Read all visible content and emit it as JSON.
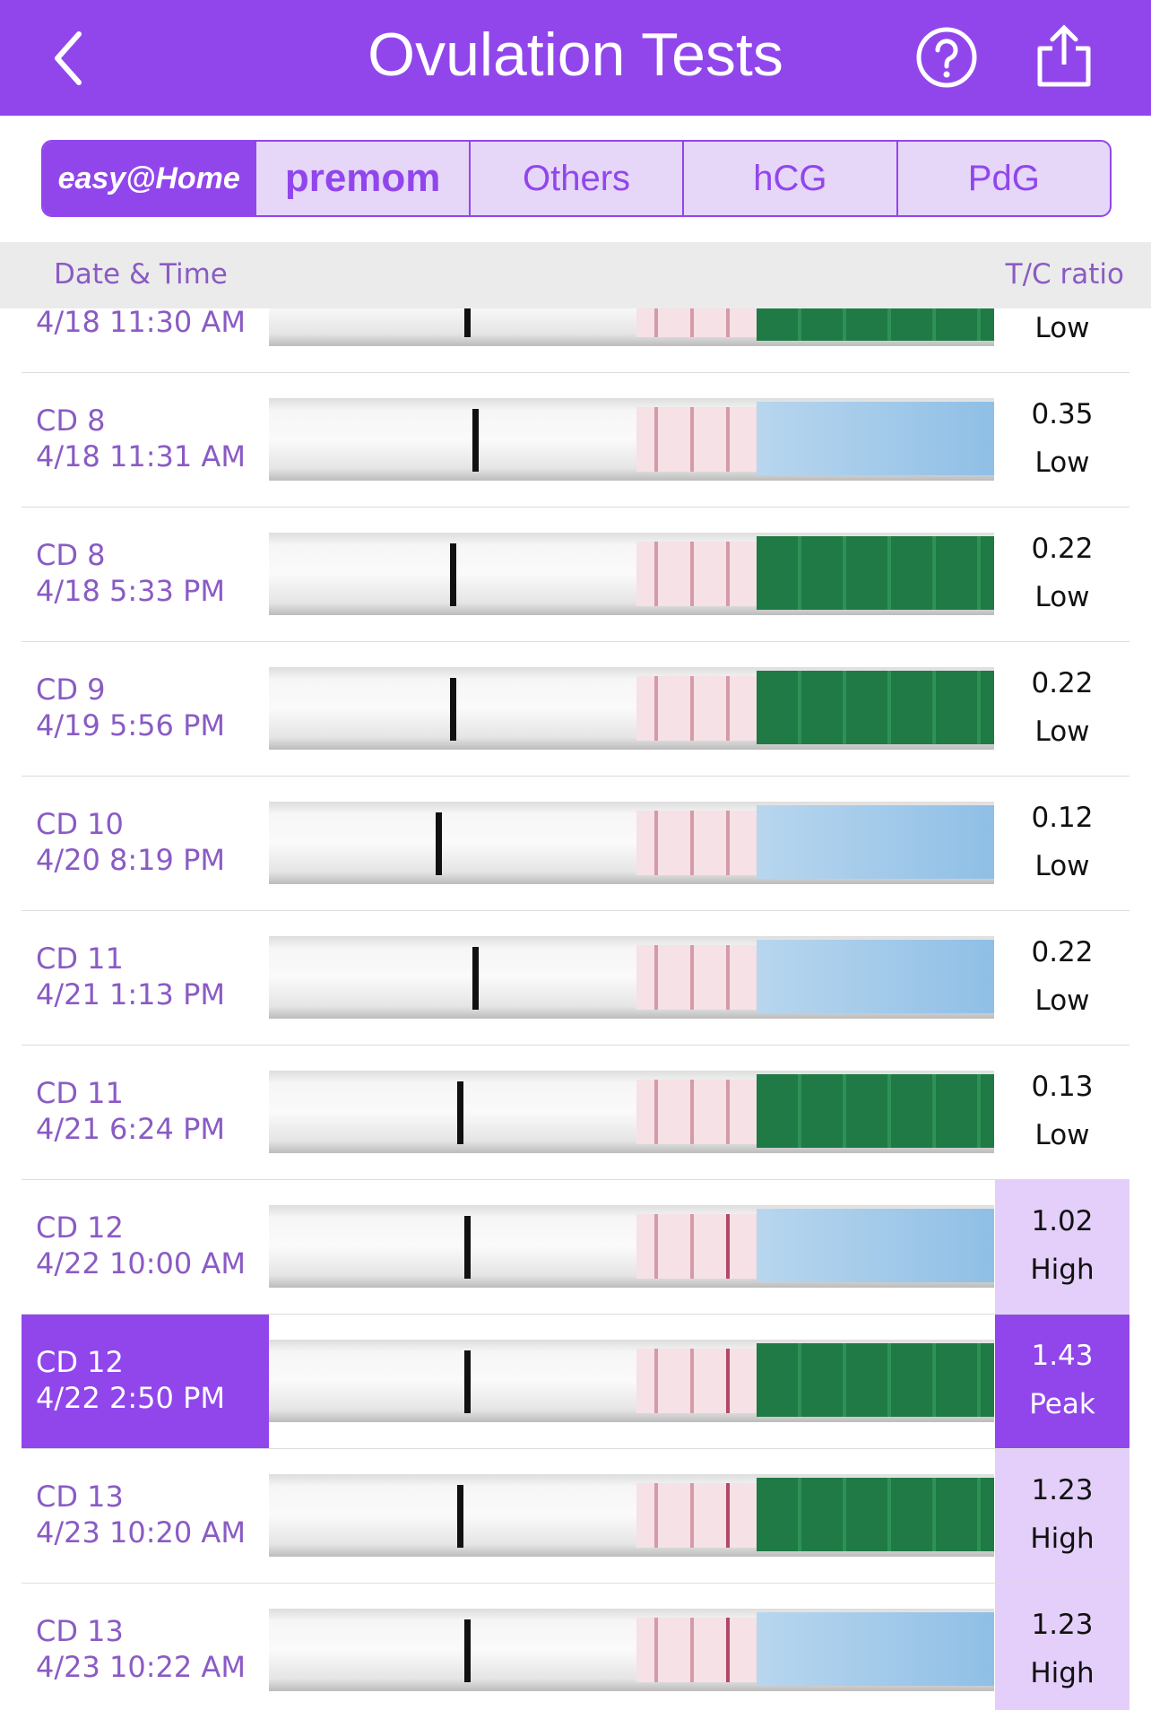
{
  "header": {
    "title": "Ovulation Tests"
  },
  "tabs": [
    "easy@Home",
    "premom",
    "Others",
    "hCG",
    "PdG"
  ],
  "columns": {
    "left": "Date & Time",
    "right": "T/C ratio"
  },
  "rows": [
    {
      "datetime": "4/18 11:30 AM",
      "level": "Low"
    },
    {
      "cd": "CD 8",
      "datetime": "4/18 11:31 AM",
      "ratio": 0.35,
      "level": "Low"
    },
    {
      "cd": "CD 8",
      "datetime": "4/18 5:33 PM",
      "ratio": 0.22,
      "level": "Low"
    },
    {
      "cd": "CD 9",
      "datetime": "4/19 5:56 PM",
      "ratio": 0.22,
      "level": "Low"
    },
    {
      "cd": "CD 10",
      "datetime": "4/20 8:19 PM",
      "ratio": 0.12,
      "level": "Low"
    },
    {
      "cd": "CD 11",
      "datetime": "4/21 1:13 PM",
      "ratio": 0.22,
      "level": "Low"
    },
    {
      "cd": "CD 11",
      "datetime": "4/21 6:24 PM",
      "ratio": 0.13,
      "level": "Low"
    },
    {
      "cd": "CD 12",
      "datetime": "4/22 10:00 AM",
      "ratio": 1.02,
      "level": "High"
    },
    {
      "cd": "CD 12",
      "datetime": "4/22 2:50 PM",
      "ratio": 1.43,
      "level": "Peak"
    },
    {
      "cd": "CD 13",
      "datetime": "4/23 10:20 AM",
      "ratio": 1.23,
      "level": "High"
    },
    {
      "cd": "CD 13",
      "datetime": "4/23 10:22 AM",
      "ratio": 1.23,
      "level": "High"
    }
  ]
}
